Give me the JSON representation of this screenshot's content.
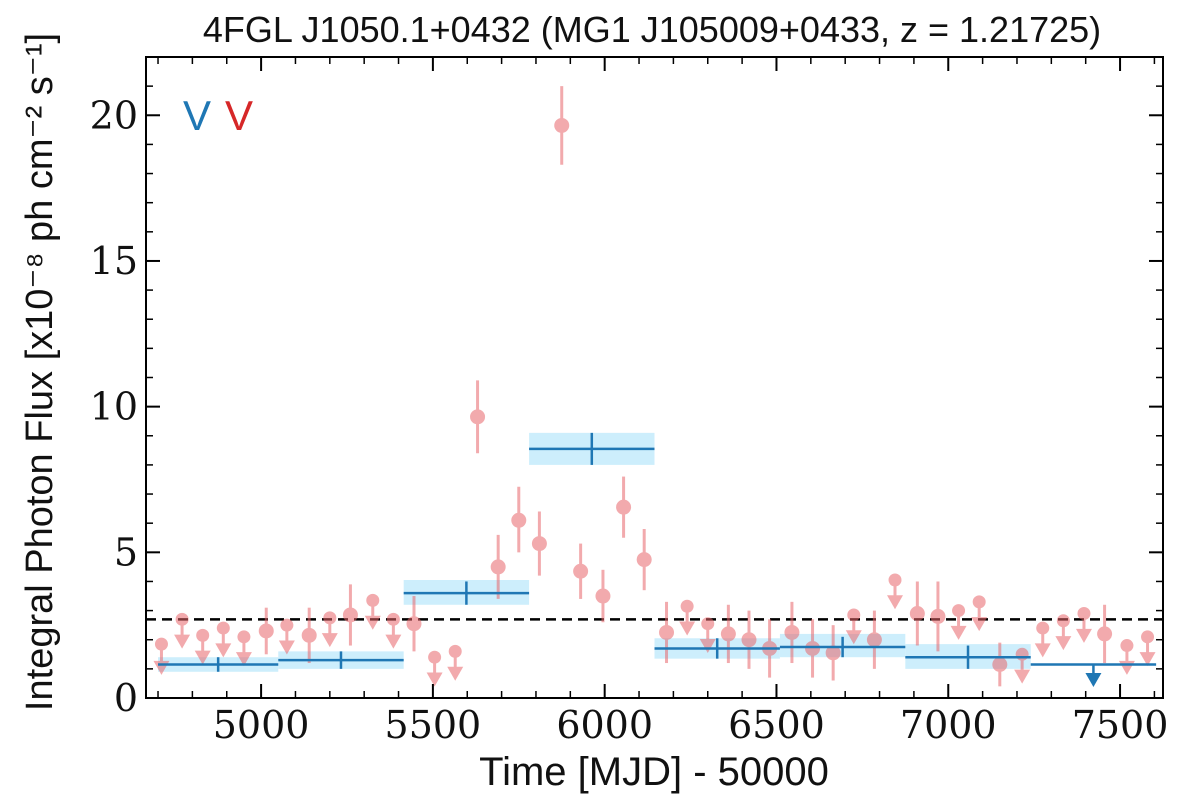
{
  "chart_data": {
    "type": "scatter",
    "title": "4FGL J1050.1+0432 (MG1 J105009+0433, z = 1.21725)",
    "xlabel": "Time [MJD] - 50000",
    "ylabel": "Integral Photon Flux [x10⁻⁸ ph cm⁻² s⁻¹]",
    "xlim": [
      4665,
      7625
    ],
    "ylim": [
      0,
      22
    ],
    "xticks": [
      5000,
      5500,
      6000,
      6500,
      7000,
      7500
    ],
    "yticks": [
      0,
      5,
      10,
      15,
      20
    ],
    "grid": false,
    "variability_tags": [
      {
        "text": "V",
        "color": "#1f77b4"
      },
      {
        "text": "V",
        "color": "#d62728"
      }
    ],
    "mean_flux": 2.7,
    "long_bins": {
      "color": "#1f77b4",
      "band_color": "#cdeefc",
      "points": [
        {
          "x0": 4700,
          "x1": 5050,
          "y": 1.15,
          "ylo": 0.9,
          "yhi": 1.4,
          "band": [
            0.9,
            1.4
          ],
          "uplim": false
        },
        {
          "x0": 5050,
          "x1": 5415,
          "y": 1.3,
          "ylo": 1.0,
          "yhi": 1.6,
          "band": [
            1.0,
            1.6
          ],
          "uplim": false
        },
        {
          "x0": 5415,
          "x1": 5780,
          "y": 3.6,
          "ylo": 3.2,
          "yhi": 4.0,
          "band": [
            3.2,
            4.05
          ],
          "uplim": false
        },
        {
          "x0": 5780,
          "x1": 6145,
          "y": 8.55,
          "ylo": 8.0,
          "yhi": 9.1,
          "band": [
            8.0,
            9.1
          ],
          "uplim": false
        },
        {
          "x0": 6145,
          "x1": 6510,
          "y": 1.7,
          "ylo": 1.35,
          "yhi": 2.05,
          "band": [
            1.35,
            2.05
          ],
          "uplim": false
        },
        {
          "x0": 6510,
          "x1": 6875,
          "y": 1.75,
          "ylo": 1.4,
          "yhi": 2.1,
          "band": [
            1.4,
            2.2
          ],
          "uplim": false
        },
        {
          "x0": 6875,
          "x1": 7240,
          "y": 1.4,
          "ylo": 1.0,
          "yhi": 1.8,
          "band": [
            1.0,
            1.85
          ],
          "uplim": false
        },
        {
          "x0": 7240,
          "x1": 7605,
          "y": 1.15,
          "ylo": 0.55,
          "yhi": 1.15,
          "band": null,
          "uplim": true
        }
      ]
    },
    "short_bins": {
      "color": "#e8666b",
      "points": [
        {
          "x": 4710,
          "y": 1.85,
          "lo": 1.0,
          "hi": 1.85,
          "uplim": true
        },
        {
          "x": 4770,
          "y": 2.7,
          "lo": 1.9,
          "hi": 2.7,
          "uplim": true
        },
        {
          "x": 4830,
          "y": 2.15,
          "lo": 1.35,
          "hi": 2.15,
          "uplim": true
        },
        {
          "x": 4890,
          "y": 2.4,
          "lo": 1.6,
          "hi": 2.4,
          "uplim": true
        },
        {
          "x": 4950,
          "y": 2.1,
          "lo": 1.3,
          "hi": 2.1,
          "uplim": true
        },
        {
          "x": 5015,
          "y": 2.3,
          "lo": 1.5,
          "hi": 3.1,
          "uplim": false
        },
        {
          "x": 5075,
          "y": 2.5,
          "lo": 1.7,
          "hi": 2.5,
          "uplim": true
        },
        {
          "x": 5140,
          "y": 2.15,
          "lo": 1.2,
          "hi": 3.1,
          "uplim": false
        },
        {
          "x": 5200,
          "y": 2.75,
          "lo": 1.95,
          "hi": 2.75,
          "uplim": true
        },
        {
          "x": 5260,
          "y": 2.85,
          "lo": 1.8,
          "hi": 3.9,
          "uplim": false
        },
        {
          "x": 5325,
          "y": 3.35,
          "lo": 2.55,
          "hi": 3.35,
          "uplim": true
        },
        {
          "x": 5385,
          "y": 2.7,
          "lo": 1.9,
          "hi": 2.7,
          "uplim": true
        },
        {
          "x": 5445,
          "y": 2.55,
          "lo": 1.6,
          "hi": 3.5,
          "uplim": false
        },
        {
          "x": 5505,
          "y": 1.4,
          "lo": 0.6,
          "hi": 1.4,
          "uplim": true
        },
        {
          "x": 5565,
          "y": 1.6,
          "lo": 0.8,
          "hi": 1.6,
          "uplim": true
        },
        {
          "x": 5630,
          "y": 9.65,
          "lo": 8.4,
          "hi": 10.9,
          "uplim": false
        },
        {
          "x": 5690,
          "y": 4.5,
          "lo": 3.4,
          "hi": 5.6,
          "uplim": false
        },
        {
          "x": 5750,
          "y": 6.1,
          "lo": 5.0,
          "hi": 7.25,
          "uplim": false
        },
        {
          "x": 5810,
          "y": 5.3,
          "lo": 4.2,
          "hi": 6.4,
          "uplim": false
        },
        {
          "x": 5875,
          "y": 19.65,
          "lo": 18.3,
          "hi": 21.0,
          "uplim": false
        },
        {
          "x": 5930,
          "y": 4.35,
          "lo": 3.4,
          "hi": 5.3,
          "uplim": false
        },
        {
          "x": 5995,
          "y": 3.5,
          "lo": 2.6,
          "hi": 4.4,
          "uplim": false
        },
        {
          "x": 6055,
          "y": 6.55,
          "lo": 5.5,
          "hi": 7.6,
          "uplim": false
        },
        {
          "x": 6115,
          "y": 4.75,
          "lo": 3.7,
          "hi": 5.8,
          "uplim": false
        },
        {
          "x": 6180,
          "y": 2.25,
          "lo": 1.2,
          "hi": 3.3,
          "uplim": false
        },
        {
          "x": 6240,
          "y": 3.15,
          "lo": 2.35,
          "hi": 3.15,
          "uplim": true
        },
        {
          "x": 6300,
          "y": 2.55,
          "lo": 1.75,
          "hi": 2.55,
          "uplim": true
        },
        {
          "x": 6360,
          "y": 2.2,
          "lo": 1.2,
          "hi": 3.2,
          "uplim": false
        },
        {
          "x": 6420,
          "y": 2.0,
          "lo": 1.0,
          "hi": 3.0,
          "uplim": false
        },
        {
          "x": 6480,
          "y": 1.7,
          "lo": 0.7,
          "hi": 2.7,
          "uplim": false
        },
        {
          "x": 6545,
          "y": 2.25,
          "lo": 1.2,
          "hi": 3.3,
          "uplim": false
        },
        {
          "x": 6605,
          "y": 1.7,
          "lo": 0.7,
          "hi": 2.7,
          "uplim": false
        },
        {
          "x": 6665,
          "y": 1.55,
          "lo": 0.6,
          "hi": 2.5,
          "uplim": false
        },
        {
          "x": 6725,
          "y": 2.85,
          "lo": 2.05,
          "hi": 2.85,
          "uplim": true
        },
        {
          "x": 6785,
          "y": 2.0,
          "lo": 1.0,
          "hi": 3.0,
          "uplim": false
        },
        {
          "x": 6845,
          "y": 4.05,
          "lo": 3.25,
          "hi": 4.05,
          "uplim": true
        },
        {
          "x": 6910,
          "y": 2.9,
          "lo": 1.8,
          "hi": 4.0,
          "uplim": false
        },
        {
          "x": 6970,
          "y": 2.8,
          "lo": 1.6,
          "hi": 4.0,
          "uplim": false
        },
        {
          "x": 7030,
          "y": 3.0,
          "lo": 2.2,
          "hi": 3.0,
          "uplim": true
        },
        {
          "x": 7090,
          "y": 3.3,
          "lo": 2.5,
          "hi": 3.3,
          "uplim": true
        },
        {
          "x": 7150,
          "y": 1.15,
          "lo": 0.4,
          "hi": 1.9,
          "uplim": false
        },
        {
          "x": 7215,
          "y": 1.5,
          "lo": 0.7,
          "hi": 1.5,
          "uplim": true
        },
        {
          "x": 7275,
          "y": 2.4,
          "lo": 1.6,
          "hi": 2.4,
          "uplim": true
        },
        {
          "x": 7335,
          "y": 2.65,
          "lo": 1.85,
          "hi": 2.65,
          "uplim": true
        },
        {
          "x": 7395,
          "y": 2.9,
          "lo": 2.1,
          "hi": 2.9,
          "uplim": true
        },
        {
          "x": 7455,
          "y": 2.2,
          "lo": 1.2,
          "hi": 3.2,
          "uplim": false
        },
        {
          "x": 7520,
          "y": 1.8,
          "lo": 1.0,
          "hi": 1.8,
          "uplim": true
        },
        {
          "x": 7580,
          "y": 2.1,
          "lo": 1.3,
          "hi": 2.1,
          "uplim": true
        }
      ]
    }
  }
}
